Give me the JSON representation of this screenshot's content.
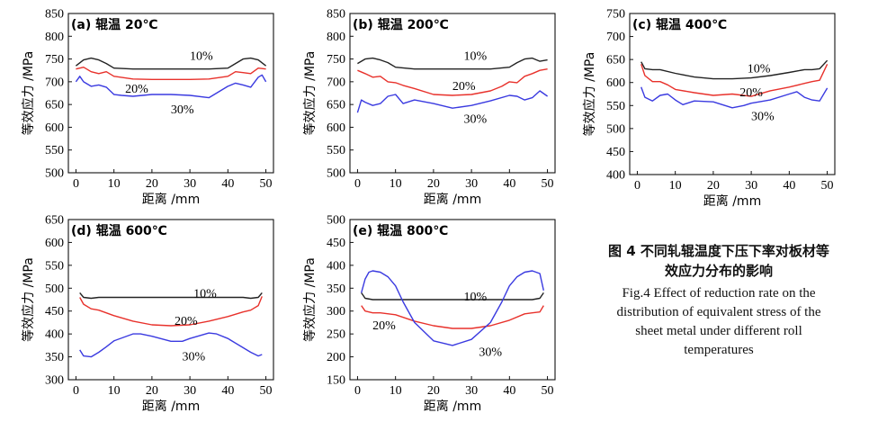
{
  "colors": {
    "10%": "#222222",
    "20%": "#e8312b",
    "30%": "#3a3ae0",
    "axis": "#111111"
  },
  "chart_data": [
    {
      "type": "line",
      "title": "(a) 辊温 20℃",
      "xlabel": "距离 /mm",
      "ylabel": "等效应力 /MPa",
      "xlim": [
        -2,
        52
      ],
      "ylim": [
        500,
        850
      ],
      "xticks": [
        0,
        10,
        20,
        30,
        40,
        50
      ],
      "yticks": [
        500,
        550,
        600,
        650,
        700,
        750,
        800,
        850
      ],
      "series": [
        {
          "name": "10%",
          "x": [
            0,
            2,
            4,
            6,
            8,
            10,
            15,
            20,
            25,
            30,
            35,
            40,
            42,
            44,
            46,
            48,
            50
          ],
          "y": [
            735,
            748,
            752,
            748,
            740,
            730,
            728,
            728,
            728,
            728,
            728,
            730,
            740,
            750,
            752,
            748,
            735
          ]
        },
        {
          "name": "20%",
          "x": [
            0,
            2,
            4,
            6,
            8,
            10,
            15,
            20,
            25,
            30,
            35,
            40,
            42,
            44,
            46,
            48,
            50
          ],
          "y": [
            728,
            732,
            722,
            718,
            722,
            712,
            706,
            705,
            705,
            705,
            706,
            712,
            722,
            720,
            718,
            730,
            728
          ]
        },
        {
          "name": "30%",
          "x": [
            0,
            1,
            2,
            4,
            6,
            8,
            10,
            12,
            15,
            20,
            25,
            30,
            35,
            40,
            42,
            44,
            46,
            48,
            49,
            50
          ],
          "y": [
            700,
            712,
            700,
            690,
            693,
            688,
            672,
            670,
            668,
            672,
            672,
            670,
            665,
            690,
            697,
            693,
            688,
            710,
            715,
            700
          ]
        }
      ],
      "labels": [
        {
          "text": "10%",
          "x": 33,
          "y": 758
        },
        {
          "text": "20%",
          "x": 16,
          "y": 686
        },
        {
          "text": "30%",
          "x": 28,
          "y": 640
        }
      ]
    },
    {
      "type": "line",
      "title": "(b) 辊温 200℃",
      "xlabel": "距离 /mm",
      "ylabel": "等效应力 /MPa",
      "xlim": [
        -2,
        52
      ],
      "ylim": [
        500,
        850
      ],
      "xticks": [
        0,
        10,
        20,
        30,
        40,
        50
      ],
      "yticks": [
        500,
        550,
        600,
        650,
        700,
        750,
        800,
        850
      ],
      "series": [
        {
          "name": "10%",
          "x": [
            0,
            2,
            4,
            6,
            8,
            10,
            15,
            20,
            25,
            30,
            35,
            40,
            42,
            44,
            46,
            48,
            50
          ],
          "y": [
            740,
            750,
            752,
            748,
            742,
            732,
            728,
            728,
            728,
            728,
            728,
            732,
            742,
            750,
            752,
            745,
            748
          ]
        },
        {
          "name": "20%",
          "x": [
            0,
            2,
            4,
            6,
            8,
            10,
            12,
            15,
            20,
            25,
            30,
            35,
            38,
            40,
            42,
            44,
            46,
            48,
            50
          ],
          "y": [
            725,
            718,
            710,
            712,
            700,
            698,
            692,
            685,
            672,
            670,
            672,
            680,
            690,
            700,
            698,
            712,
            718,
            725,
            728
          ]
        },
        {
          "name": "30%",
          "x": [
            0,
            1,
            2,
            4,
            6,
            8,
            10,
            12,
            15,
            20,
            25,
            30,
            35,
            40,
            42,
            44,
            46,
            48,
            50
          ],
          "y": [
            632,
            660,
            655,
            648,
            652,
            668,
            672,
            652,
            660,
            652,
            642,
            648,
            658,
            670,
            668,
            660,
            665,
            680,
            668
          ]
        }
      ],
      "labels": [
        {
          "text": "10%",
          "x": 31,
          "y": 758
        },
        {
          "text": "20%",
          "x": 28,
          "y": 692
        },
        {
          "text": "30%",
          "x": 31,
          "y": 620
        }
      ]
    },
    {
      "type": "line",
      "title": "(c) 辊温 400℃",
      "xlabel": "距离 /mm",
      "ylabel": "等效应力 /MPa",
      "xlim": [
        -2,
        52
      ],
      "ylim": [
        400,
        750
      ],
      "xticks": [
        0,
        10,
        20,
        30,
        40,
        50
      ],
      "yticks": [
        400,
        450,
        500,
        550,
        600,
        650,
        700,
        750
      ],
      "series": [
        {
          "name": "10%",
          "x": [
            1,
            2,
            4,
            6,
            10,
            15,
            20,
            25,
            30,
            35,
            40,
            44,
            46,
            48,
            50
          ],
          "y": [
            645,
            630,
            628,
            628,
            620,
            612,
            608,
            608,
            610,
            615,
            622,
            628,
            628,
            630,
            648
          ]
        },
        {
          "name": "20%",
          "x": [
            1,
            2,
            4,
            6,
            8,
            10,
            15,
            20,
            25,
            30,
            35,
            40,
            44,
            46,
            48,
            50
          ],
          "y": [
            640,
            615,
            602,
            602,
            595,
            585,
            578,
            572,
            575,
            570,
            582,
            590,
            598,
            602,
            605,
            640
          ]
        },
        {
          "name": "30%",
          "x": [
            1,
            2,
            4,
            6,
            8,
            10,
            12,
            15,
            20,
            25,
            28,
            30,
            35,
            40,
            42,
            44,
            46,
            48,
            50
          ],
          "y": [
            590,
            568,
            560,
            572,
            575,
            562,
            552,
            560,
            558,
            545,
            550,
            555,
            562,
            575,
            580,
            568,
            562,
            560,
            588
          ]
        }
      ],
      "labels": [
        {
          "text": "10%",
          "x": 32,
          "y": 632
        },
        {
          "text": "20%",
          "x": 30,
          "y": 580
        },
        {
          "text": "30%",
          "x": 33,
          "y": 528
        }
      ]
    },
    {
      "type": "line",
      "title": "(d) 辊温 600℃",
      "xlabel": "距离 /mm",
      "ylabel": "等效应力 /MPa",
      "xlim": [
        -2,
        52
      ],
      "ylim": [
        300,
        650
      ],
      "xticks": [
        0,
        10,
        20,
        30,
        40,
        50
      ],
      "yticks": [
        300,
        350,
        400,
        450,
        500,
        550,
        600,
        650
      ],
      "series": [
        {
          "name": "10%",
          "x": [
            1,
            2,
            4,
            6,
            10,
            15,
            20,
            25,
            30,
            35,
            40,
            44,
            46,
            48,
            49
          ],
          "y": [
            490,
            480,
            478,
            480,
            480,
            480,
            480,
            480,
            480,
            480,
            480,
            480,
            478,
            480,
            490
          ]
        },
        {
          "name": "20%",
          "x": [
            1,
            2,
            4,
            6,
            10,
            15,
            20,
            25,
            30,
            35,
            40,
            44,
            46,
            48,
            49
          ],
          "y": [
            480,
            465,
            455,
            452,
            440,
            428,
            420,
            418,
            420,
            428,
            438,
            448,
            452,
            462,
            482
          ]
        },
        {
          "name": "30%",
          "x": [
            1,
            2,
            4,
            6,
            8,
            10,
            15,
            17,
            20,
            25,
            28,
            30,
            35,
            37,
            40,
            44,
            46,
            48,
            49
          ],
          "y": [
            365,
            352,
            350,
            360,
            372,
            385,
            400,
            400,
            395,
            384,
            384,
            390,
            402,
            400,
            390,
            370,
            360,
            352,
            355
          ]
        }
      ],
      "labels": [
        {
          "text": "10%",
          "x": 34,
          "y": 490
        },
        {
          "text": "20%",
          "x": 29,
          "y": 430
        },
        {
          "text": "30%",
          "x": 31,
          "y": 352
        }
      ]
    },
    {
      "type": "line",
      "title": "(e) 辊温 800℃",
      "xlabel": "距离 /mm",
      "ylabel": "等效应力 /MPa",
      "xlim": [
        -2,
        52
      ],
      "ylim": [
        150,
        500
      ],
      "xticks": [
        0,
        10,
        20,
        30,
        40,
        50
      ],
      "yticks": [
        150,
        200,
        250,
        300,
        350,
        400,
        450,
        500
      ],
      "series": [
        {
          "name": "10%",
          "x": [
            1,
            2,
            4,
            6,
            10,
            15,
            20,
            25,
            30,
            35,
            40,
            44,
            46,
            48,
            49
          ],
          "y": [
            340,
            328,
            325,
            325,
            325,
            325,
            325,
            325,
            325,
            325,
            325,
            325,
            325,
            328,
            340
          ]
        },
        {
          "name": "20%",
          "x": [
            1,
            2,
            4,
            6,
            10,
            15,
            20,
            25,
            30,
            35,
            40,
            44,
            46,
            48,
            49
          ],
          "y": [
            312,
            300,
            296,
            296,
            292,
            278,
            268,
            262,
            262,
            268,
            280,
            294,
            296,
            298,
            312
          ]
        },
        {
          "name": "30%",
          "x": [
            1,
            2,
            3,
            4,
            6,
            8,
            10,
            12,
            15,
            20,
            25,
            30,
            35,
            38,
            40,
            42,
            44,
            46,
            48,
            49
          ],
          "y": [
            340,
            370,
            385,
            388,
            385,
            375,
            355,
            320,
            275,
            235,
            225,
            238,
            275,
            320,
            355,
            375,
            385,
            388,
            382,
            345
          ]
        }
      ],
      "labels": [
        {
          "text": "10%",
          "x": 31,
          "y": 333
        },
        {
          "text": "20%",
          "x": 7,
          "y": 270
        },
        {
          "text": "30%",
          "x": 35,
          "y": 212
        }
      ]
    }
  ],
  "caption": {
    "zh_line1": "图 4  不同轧辊温度下压下率对板材等",
    "zh_line2": "效应力分布的影响",
    "en_line1": "Fig.4  Effect of reduction rate on the",
    "en_line2": "distribution of equivalent stress of the",
    "en_line3": "sheet metal under different roll",
    "en_line4": "temperatures"
  }
}
